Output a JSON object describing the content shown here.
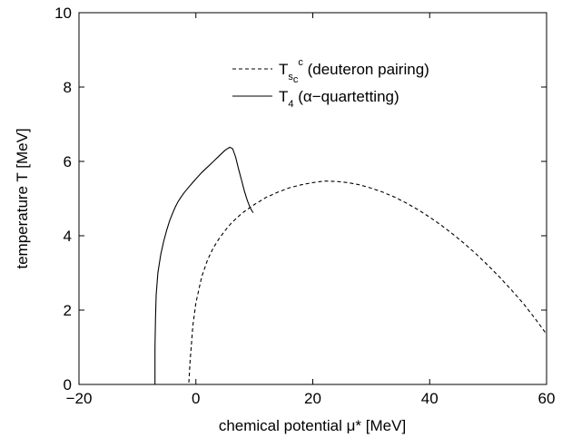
{
  "chart_data": {
    "type": "line",
    "title": "",
    "xlabel": "chemical potential μ* [MeV]",
    "ylabel": "temperature T [MeV]",
    "xlim": [
      -20,
      60
    ],
    "ylim": [
      0,
      10
    ],
    "xticks": [
      -20,
      0,
      20,
      40,
      60
    ],
    "xtick_labels": [
      "−20",
      "0",
      "20",
      "40",
      "60"
    ],
    "yticks": [
      0,
      2,
      4,
      6,
      8,
      10
    ],
    "ytick_labels": [
      "0",
      "2",
      "4",
      "6",
      "8",
      "10"
    ],
    "grid": false,
    "legend_position": "top-right",
    "series": [
      {
        "name": "T_s^c (deuteron pairing)",
        "legend": {
          "main": "T",
          "sub": "s",
          "subsup": "c",
          "sup": "c",
          "tail": " (deuteron pairing)"
        },
        "style": "dashed",
        "color": "#000000",
        "x": [
          -1.2,
          -1.0,
          -0.5,
          0,
          1,
          2,
          3,
          4,
          5,
          6,
          7,
          8,
          10,
          12,
          14,
          16,
          18,
          20,
          22,
          24,
          26,
          28,
          30,
          32,
          34,
          36,
          38,
          40,
          42,
          44,
          46,
          48,
          50,
          52,
          54,
          56,
          58,
          60
        ],
        "y": [
          0.05,
          0.6,
          1.6,
          2.2,
          2.9,
          3.35,
          3.68,
          3.93,
          4.14,
          4.33,
          4.48,
          4.62,
          4.84,
          5.03,
          5.17,
          5.29,
          5.37,
          5.43,
          5.47,
          5.46,
          5.43,
          5.37,
          5.28,
          5.17,
          5.04,
          4.88,
          4.7,
          4.5,
          4.28,
          4.04,
          3.78,
          3.5,
          3.2,
          2.88,
          2.54,
          2.18,
          1.78,
          1.35
        ]
      },
      {
        "name": "T_4 (α−quartetting)",
        "legend": {
          "main": "T",
          "sub": "4",
          "tail": " (α−quartetting)"
        },
        "style": "solid",
        "color": "#000000",
        "x": [
          -7.0,
          -7.0,
          -6.9,
          -6.8,
          -6.5,
          -6.2,
          -6.0,
          -5.5,
          -5.0,
          -4.5,
          -4.0,
          -3.5,
          -3.0,
          -2.5,
          -2.0,
          -1.0,
          0.0,
          1.0,
          2.0,
          3.0,
          4.0,
          5.0,
          5.8,
          6.3,
          6.8,
          7.3,
          7.8,
          8.3,
          8.8,
          9.3,
          9.8
        ],
        "y": [
          0.0,
          1.0,
          1.8,
          2.4,
          3.0,
          3.3,
          3.5,
          3.85,
          4.15,
          4.4,
          4.6,
          4.78,
          4.93,
          5.05,
          5.16,
          5.35,
          5.53,
          5.7,
          5.85,
          6.0,
          6.15,
          6.3,
          6.38,
          6.34,
          6.12,
          5.8,
          5.5,
          5.2,
          4.95,
          4.75,
          4.62
        ]
      }
    ]
  }
}
